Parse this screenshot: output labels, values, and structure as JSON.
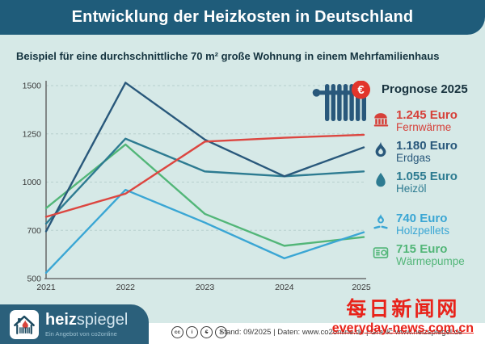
{
  "header": {
    "title": "Entwicklung der Heizkosten in Deutschland"
  },
  "subtitle": "Beispiel für eine durchschnittliche 70 m² große Wohnung in einem Mehrfamilienhaus",
  "chart_data": {
    "type": "line",
    "x": [
      "2021",
      "2022",
      "2023",
      "2024",
      "2025"
    ],
    "series": [
      {
        "name": "Wärmepumpe",
        "color": "#52b678",
        "values": [
          865,
          1195,
          835,
          670,
          715
        ]
      },
      {
        "name": "Holzpellets",
        "color": "#3aa6d4",
        "values": [
          530,
          960,
          790,
          605,
          740
        ]
      },
      {
        "name": "Heizöl",
        "color": "#2d7b91",
        "values": [
          785,
          1225,
          1055,
          1030,
          1055
        ]
      },
      {
        "name": "Erdgas",
        "color": "#29587b",
        "values": [
          745,
          1515,
          1220,
          1030,
          1180
        ]
      },
      {
        "name": "Fernwärme",
        "color": "#dc4640",
        "values": [
          820,
          940,
          1210,
          1230,
          1245
        ]
      }
    ],
    "ylim": [
      500,
      1500
    ],
    "ytick_labels": [
      "1500",
      "1250",
      "1000",
      "700",
      "500"
    ],
    "grid": "horizontal-dashed",
    "legend_position": "right"
  },
  "decor": {
    "euro_symbol": "€"
  },
  "legend": {
    "title": "Prognose 2025",
    "items": [
      {
        "icon": "district-heating-icon",
        "value": "1.245 Euro",
        "label": "Fernwärme",
        "color": "#d6413a",
        "gap_before": false
      },
      {
        "icon": "gas-flame-icon",
        "value": "1.180 Euro",
        "label": "Erdgas",
        "color": "#29587b",
        "gap_before": false
      },
      {
        "icon": "oil-drop-icon",
        "value": "1.055 Euro",
        "label": "Heizöl",
        "color": "#2d7b91",
        "gap_before": false
      },
      {
        "icon": "pellets-flame-icon",
        "value": "740 Euro",
        "label": "Holzpellets",
        "color": "#3aa6d4",
        "gap_before": true
      },
      {
        "icon": "heat-pump-icon",
        "value": "715 Euro",
        "label": "Wärmepumpe",
        "color": "#52b678",
        "gap_before": false
      }
    ]
  },
  "footer": {
    "logo_bold": "heiz",
    "logo_light": "spiegel",
    "logo_sub": "Ein Angebot von co2online",
    "license_icons": [
      {
        "name": "cc-icon",
        "glyph": "cc"
      },
      {
        "name": "cc-by-icon",
        "glyph": "i"
      },
      {
        "name": "cc-nc-icon",
        "glyph": "€"
      },
      {
        "name": "cc-nd-icon",
        "glyph": "="
      }
    ],
    "source_text": "Stand: 09/2025  |  Daten: www.co2online.de  |  Grafik: www.heizspiegel.de"
  },
  "watermark": {
    "line1": "每日新闻网",
    "line2": "everyday-news.com.cn"
  }
}
